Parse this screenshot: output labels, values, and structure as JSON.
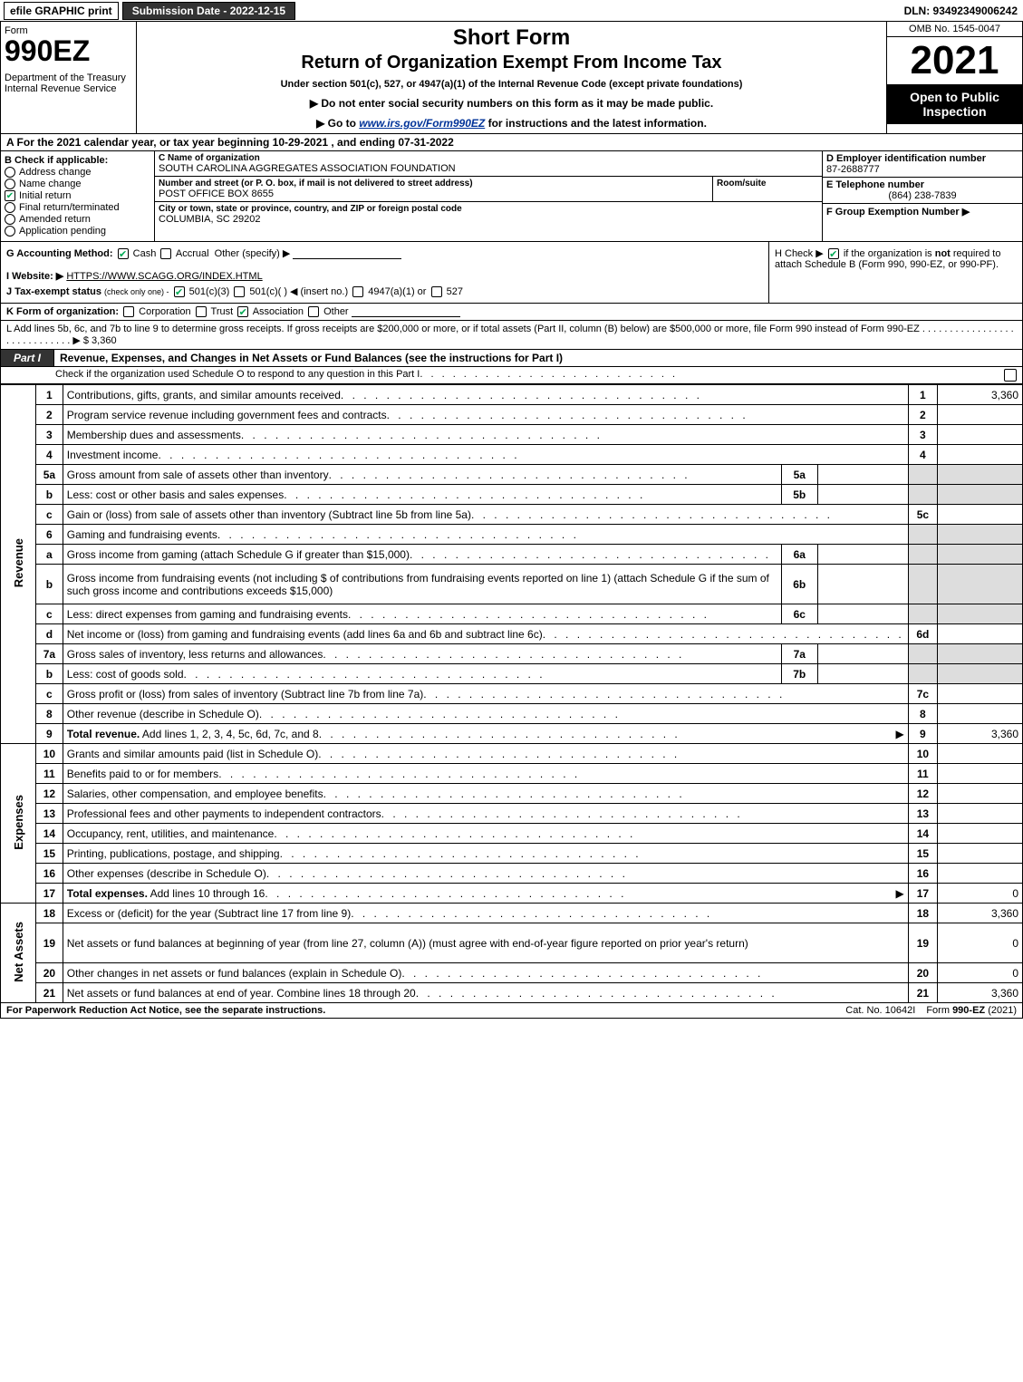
{
  "topbar": {
    "efile": "efile GRAPHIC print",
    "submission": "Submission Date - 2022-12-15",
    "dln": "DLN: 93492349006242"
  },
  "header": {
    "form_word": "Form",
    "form_no": "990EZ",
    "dept": "Department of the Treasury\nInternal Revenue Service",
    "short_form": "Short Form",
    "title": "Return of Organization Exempt From Income Tax",
    "subtitle": "Under section 501(c), 527, or 4947(a)(1) of the Internal Revenue Code (except private foundations)",
    "warn": "▶ Do not enter social security numbers on this form as it may be made public.",
    "goto_pre": "▶ Go to ",
    "goto_link": "www.irs.gov/Form990EZ",
    "goto_post": " for instructions and the latest information.",
    "omb": "OMB No. 1545-0047",
    "taxyear": "2021",
    "open": "Open to Public Inspection"
  },
  "lineA": "A  For the 2021 calendar year, or tax year beginning 10-29-2021 , and ending 07-31-2022",
  "B": {
    "hdr": "B  Check if applicable:",
    "items": [
      {
        "label": "Address change",
        "checked": false,
        "shape": "round"
      },
      {
        "label": "Name change",
        "checked": false,
        "shape": "round"
      },
      {
        "label": "Initial return",
        "checked": true,
        "shape": "square"
      },
      {
        "label": "Final return/terminated",
        "checked": false,
        "shape": "round"
      },
      {
        "label": "Amended return",
        "checked": false,
        "shape": "round"
      },
      {
        "label": "Application pending",
        "checked": false,
        "shape": "round"
      }
    ]
  },
  "C": {
    "name_label": "C Name of organization",
    "name": "SOUTH CAROLINA AGGREGATES ASSOCIATION FOUNDATION",
    "addr_label": "Number and street (or P. O. box, if mail is not delivered to street address)",
    "addr": "POST OFFICE BOX 8655",
    "room_label": "Room/suite",
    "city_label": "City or town, state or province, country, and ZIP or foreign postal code",
    "city": "COLUMBIA, SC  29202"
  },
  "D": {
    "label": "D Employer identification number",
    "val": "87-2688777"
  },
  "E": {
    "label": "E Telephone number",
    "val": "(864) 238-7839"
  },
  "F": {
    "label": "F Group Exemption Number   ▶",
    "val": ""
  },
  "G": {
    "label": "G Accounting Method:",
    "cash": "Cash",
    "accrual": "Accrual",
    "other": "Other (specify) ▶"
  },
  "H": {
    "text1": "H  Check ▶ ",
    "text2": " if the organization is ",
    "not": "not",
    "text3": " required to attach Schedule B (Form 990, 990-EZ, or 990-PF)."
  },
  "I": {
    "label": "I Website: ▶",
    "val": "HTTPS://WWW.SCAGG.ORG/INDEX.HTML"
  },
  "J": {
    "label": "J Tax-exempt status",
    "sub": "(check only one) -",
    "opts": [
      "501(c)(3)",
      "501(c)(  ) ◀ (insert no.)",
      "4947(a)(1) or",
      "527"
    ]
  },
  "K": {
    "label": "K Form of organization:",
    "opts": [
      "Corporation",
      "Trust",
      "Association",
      "Other"
    ],
    "checked_index": 2
  },
  "L": {
    "text": "L Add lines 5b, 6c, and 7b to line 9 to determine gross receipts. If gross receipts are $200,000 or more, or if total assets (Part II, column (B) below) are $500,000 or more, file Form 990 instead of Form 990-EZ",
    "amount": "▶ $ 3,360"
  },
  "partI": {
    "tab": "Part I",
    "title": "Revenue, Expenses, and Changes in Net Assets or Fund Balances (see the instructions for Part I)",
    "sub": "Check if the organization used Schedule O to respond to any question in this Part I"
  },
  "sections": {
    "revenue": "Revenue",
    "expenses": "Expenses",
    "netassets": "Net Assets"
  },
  "rows": [
    {
      "sec": "revenue",
      "n": "1",
      "d": "Contributions, gifts, grants, and similar amounts received",
      "rn": "1",
      "rv": "3,360"
    },
    {
      "sec": "revenue",
      "n": "2",
      "d": "Program service revenue including government fees and contracts",
      "rn": "2",
      "rv": ""
    },
    {
      "sec": "revenue",
      "n": "3",
      "d": "Membership dues and assessments",
      "rn": "3",
      "rv": ""
    },
    {
      "sec": "revenue",
      "n": "4",
      "d": "Investment income",
      "rn": "4",
      "rv": ""
    },
    {
      "sec": "revenue",
      "n": "5a",
      "d": "Gross amount from sale of assets other than inventory",
      "in": "5a",
      "iv": "",
      "shade": true
    },
    {
      "sec": "revenue",
      "n": "b",
      "d": "Less: cost or other basis and sales expenses",
      "in": "5b",
      "iv": "",
      "shade": true
    },
    {
      "sec": "revenue",
      "n": "c",
      "d": "Gain or (loss) from sale of assets other than inventory (Subtract line 5b from line 5a)",
      "rn": "5c",
      "rv": ""
    },
    {
      "sec": "revenue",
      "n": "6",
      "d": "Gaming and fundraising events",
      "shade_all": true
    },
    {
      "sec": "revenue",
      "n": "a",
      "d": "Gross income from gaming (attach Schedule G if greater than $15,000)",
      "in": "6a",
      "iv": "",
      "shade": true
    },
    {
      "sec": "revenue",
      "n": "b",
      "d": "Gross income from fundraising events (not including $                   of contributions from fundraising events reported on line 1) (attach Schedule G if the sum of such gross income and contributions exceeds $15,000)",
      "in": "6b",
      "iv": "",
      "shade": true,
      "tall": true
    },
    {
      "sec": "revenue",
      "n": "c",
      "d": "Less: direct expenses from gaming and fundraising events",
      "in": "6c",
      "iv": "",
      "shade": true
    },
    {
      "sec": "revenue",
      "n": "d",
      "d": "Net income or (loss) from gaming and fundraising events (add lines 6a and 6b and subtract line 6c)",
      "rn": "6d",
      "rv": ""
    },
    {
      "sec": "revenue",
      "n": "7a",
      "d": "Gross sales of inventory, less returns and allowances",
      "in": "7a",
      "iv": "",
      "shade": true
    },
    {
      "sec": "revenue",
      "n": "b",
      "d": "Less: cost of goods sold",
      "in": "7b",
      "iv": "",
      "shade": true
    },
    {
      "sec": "revenue",
      "n": "c",
      "d": "Gross profit or (loss) from sales of inventory (Subtract line 7b from line 7a)",
      "rn": "7c",
      "rv": ""
    },
    {
      "sec": "revenue",
      "n": "8",
      "d": "Other revenue (describe in Schedule O)",
      "rn": "8",
      "rv": ""
    },
    {
      "sec": "revenue",
      "n": "9",
      "d": "Total revenue. Add lines 1, 2, 3, 4, 5c, 6d, 7c, and 8",
      "rn": "9",
      "rv": "3,360",
      "arrow": true,
      "bold": true
    },
    {
      "sec": "expenses",
      "n": "10",
      "d": "Grants and similar amounts paid (list in Schedule O)",
      "rn": "10",
      "rv": ""
    },
    {
      "sec": "expenses",
      "n": "11",
      "d": "Benefits paid to or for members",
      "rn": "11",
      "rv": ""
    },
    {
      "sec": "expenses",
      "n": "12",
      "d": "Salaries, other compensation, and employee benefits",
      "rn": "12",
      "rv": ""
    },
    {
      "sec": "expenses",
      "n": "13",
      "d": "Professional fees and other payments to independent contractors",
      "rn": "13",
      "rv": ""
    },
    {
      "sec": "expenses",
      "n": "14",
      "d": "Occupancy, rent, utilities, and maintenance",
      "rn": "14",
      "rv": ""
    },
    {
      "sec": "expenses",
      "n": "15",
      "d": "Printing, publications, postage, and shipping",
      "rn": "15",
      "rv": ""
    },
    {
      "sec": "expenses",
      "n": "16",
      "d": "Other expenses (describe in Schedule O)",
      "rn": "16",
      "rv": ""
    },
    {
      "sec": "expenses",
      "n": "17",
      "d": "Total expenses. Add lines 10 through 16",
      "rn": "17",
      "rv": "0",
      "arrow": true,
      "bold": true
    },
    {
      "sec": "netassets",
      "n": "18",
      "d": "Excess or (deficit) for the year (Subtract line 17 from line 9)",
      "rn": "18",
      "rv": "3,360"
    },
    {
      "sec": "netassets",
      "n": "19",
      "d": "Net assets or fund balances at beginning of year (from line 27, column (A)) (must agree with end-of-year figure reported on prior year's return)",
      "rn": "19",
      "rv": "0",
      "tall": true
    },
    {
      "sec": "netassets",
      "n": "20",
      "d": "Other changes in net assets or fund balances (explain in Schedule O)",
      "rn": "20",
      "rv": "0"
    },
    {
      "sec": "netassets",
      "n": "21",
      "d": "Net assets or fund balances at end of year. Combine lines 18 through 20",
      "rn": "21",
      "rv": "3,360"
    }
  ],
  "footer": {
    "left": "For Paperwork Reduction Act Notice, see the separate instructions.",
    "center": "Cat. No. 10642I",
    "right": "Form 990-EZ (2021)"
  },
  "colors": {
    "ink": "#000000",
    "shade": "#dddddd",
    "darkbar": "#333333",
    "check": "#00aa55",
    "link": "#003399"
  }
}
